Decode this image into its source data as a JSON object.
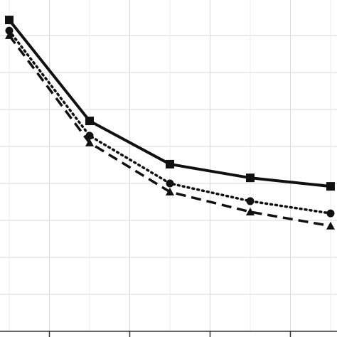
{
  "chart_data": {
    "type": "line",
    "x": [
      0,
      1,
      2,
      3,
      4
    ],
    "xlim": [
      -0.115,
      4.08
    ],
    "xticks": [
      0.5,
      1.5,
      2.5,
      3.5
    ],
    "ylim": [
      0,
      8.96
    ],
    "yticks": [
      1,
      2,
      3,
      4,
      5,
      6,
      7,
      8
    ],
    "grid": true,
    "series": [
      {
        "color": "#111111",
        "dash": "solid",
        "marker": "square",
        "values": [
          8.42,
          5.69,
          4.52,
          4.15,
          3.92
        ]
      },
      {
        "color": "#111111",
        "dash": "dotted",
        "marker": "circle",
        "values": [
          8.13,
          5.29,
          4.0,
          3.52,
          3.19
        ]
      },
      {
        "color": "#111111",
        "dash": "dashed",
        "marker": "triangle",
        "values": [
          8.0,
          5.1,
          3.77,
          3.23,
          2.85
        ]
      }
    ]
  }
}
